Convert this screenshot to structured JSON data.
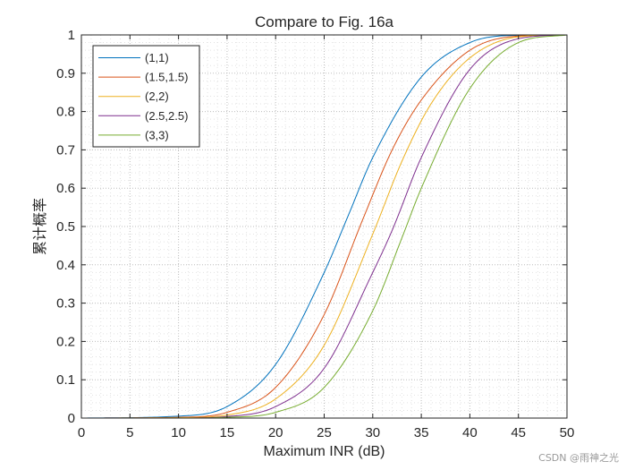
{
  "chart_data": {
    "type": "line",
    "title": "Compare to Fig. 16a",
    "xlabel": "Maximum INR (dB)",
    "ylabel": "累计概率",
    "xlim": [
      0,
      50
    ],
    "ylim": [
      0,
      1
    ],
    "xticks": [
      "0",
      "5",
      "10",
      "15",
      "20",
      "25",
      "30",
      "35",
      "40",
      "45",
      "50"
    ],
    "yticks": [
      "0",
      "0.1",
      "0.2",
      "0.3",
      "0.4",
      "0.5",
      "0.6",
      "0.7",
      "0.8",
      "0.9",
      "1"
    ],
    "grid": "major and minor, dotted",
    "legend_position": "top-left",
    "series": [
      {
        "name": "(1,1)",
        "color": "#0072BD",
        "x": [
          0,
          10,
          15,
          20,
          25,
          27.5,
          30,
          35,
          40,
          45,
          50
        ],
        "y": [
          0,
          0.005,
          0.03,
          0.14,
          0.38,
          0.53,
          0.68,
          0.89,
          0.98,
          0.999,
          1.0
        ]
      },
      {
        "name": "(1.5,1.5)",
        "color": "#D95319",
        "x": [
          0,
          10,
          15,
          20,
          25,
          29,
          32,
          35,
          40,
          45,
          50
        ],
        "y": [
          0,
          0.002,
          0.015,
          0.08,
          0.27,
          0.52,
          0.7,
          0.83,
          0.96,
          0.997,
          1.0
        ]
      },
      {
        "name": "(2,2)",
        "color": "#EDB120",
        "x": [
          0,
          10,
          15,
          20,
          25,
          30,
          33,
          36,
          40,
          45,
          50
        ],
        "y": [
          0,
          0.001,
          0.008,
          0.05,
          0.19,
          0.48,
          0.67,
          0.82,
          0.94,
          0.995,
          1.0
        ]
      },
      {
        "name": "(2.5,2.5)",
        "color": "#7E2F8E",
        "x": [
          0,
          10,
          15,
          20,
          25,
          30,
          32,
          35,
          40,
          45,
          50
        ],
        "y": [
          0,
          0.0,
          0.004,
          0.03,
          0.13,
          0.38,
          0.49,
          0.68,
          0.91,
          0.99,
          1.0
        ]
      },
      {
        "name": "(3,3)",
        "color": "#77AC30",
        "x": [
          0,
          10,
          15,
          20,
          25,
          30,
          33,
          35,
          40,
          45,
          50
        ],
        "y": [
          0,
          0.0,
          0.002,
          0.015,
          0.08,
          0.28,
          0.47,
          0.6,
          0.86,
          0.98,
          1.0
        ]
      }
    ]
  },
  "watermark": "CSDN @雨神之光"
}
